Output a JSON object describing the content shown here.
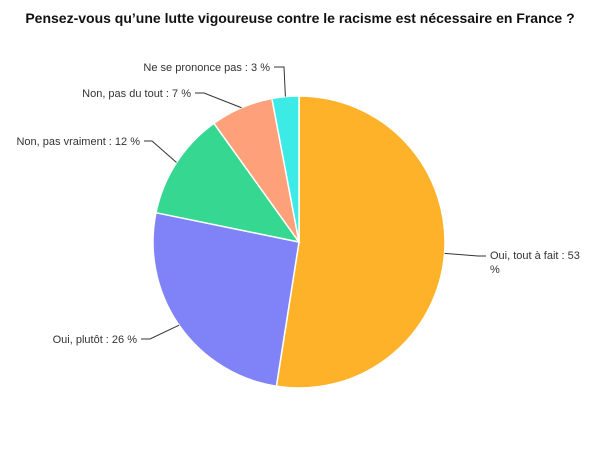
{
  "chart_data": {
    "type": "pie",
    "title": "Pensez-vous qu’une lutte vigoureuse contre le racisme est nécessaire en France ?",
    "slices": [
      {
        "label": "Oui, tout à fait",
        "value": 53,
        "display": "Oui, tout à fait : 53 %",
        "color": "#FDB22A"
      },
      {
        "label": "Oui, plutôt",
        "value": 26,
        "display": "Oui, plutôt : 26 %",
        "color": "#7F83F7"
      },
      {
        "label": "Non, pas vraiment",
        "value": 12,
        "display": "Non, pas vraiment : 12 %",
        "color": "#36D790"
      },
      {
        "label": "Non, pas du tout",
        "value": 7,
        "display": "Non, pas du tout : 7 %",
        "color": "#FEA07A"
      },
      {
        "label": "Ne se prononce pas",
        "value": 3,
        "display": "Ne se prononce pas : 3 %",
        "color": "#3DEBE6"
      }
    ]
  }
}
